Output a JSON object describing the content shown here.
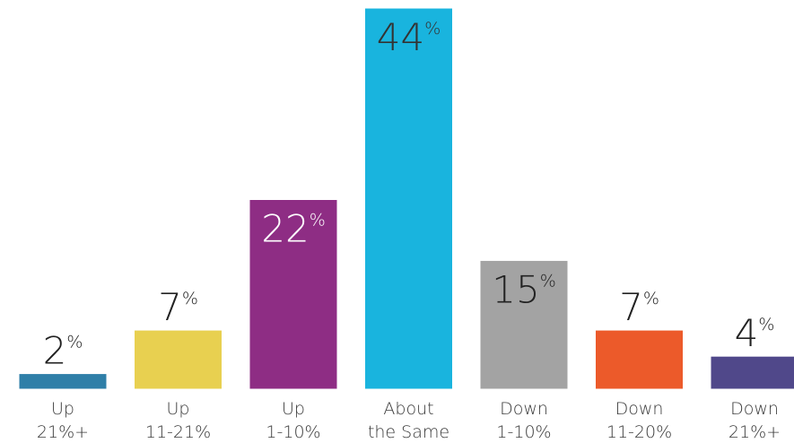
{
  "chart_data": {
    "type": "bar",
    "categories": [
      [
        "Up",
        "21%+"
      ],
      [
        "Up",
        "11-21%"
      ],
      [
        "Up",
        "1-10%"
      ],
      [
        "About",
        "the Same"
      ],
      [
        "Down",
        "1-10%"
      ],
      [
        "Down",
        "11-20%"
      ],
      [
        "Down",
        "21%+"
      ]
    ],
    "values": [
      2,
      7,
      22,
      44,
      15,
      7,
      4
    ],
    "value_labels": [
      "2",
      "7",
      "22",
      "44",
      "15",
      "7",
      "4"
    ],
    "value_suffix": "%",
    "colors": [
      "#2f7fa8",
      "#e8d050",
      "#8e2d84",
      "#19b4de",
      "#a3a3a3",
      "#ec5a2a",
      "#50488a"
    ],
    "label_inside": [
      false,
      false,
      true,
      true,
      true,
      false,
      false
    ],
    "inside_label_colors": [
      "#222222",
      "#222222",
      "#ffffff",
      "#333333",
      "#222222",
      "#222222",
      "#222222"
    ],
    "ylim": [
      0,
      44
    ],
    "grid": false,
    "legend": "none",
    "title": "",
    "xlabel": "",
    "ylabel": ""
  }
}
